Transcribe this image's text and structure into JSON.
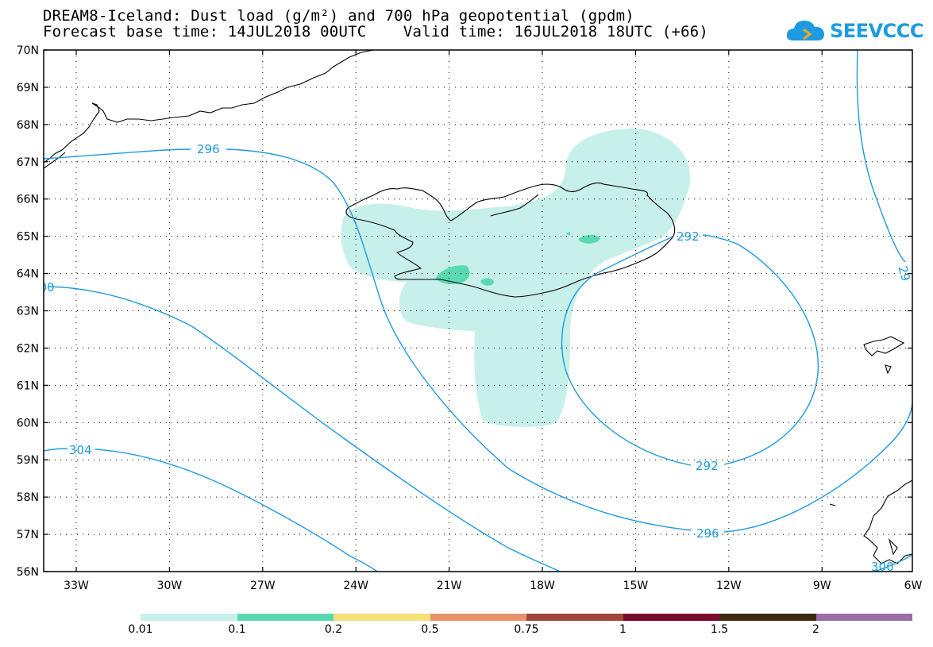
{
  "title": {
    "line1": "DREAM8-Iceland: Dust load (g/m²) and 700 hPa geopotential (gpdm)",
    "line2": "Forecast base time: 14JUL2018 00UTC    Valid time: 16JUL2018 18UTC (+66)"
  },
  "logo": {
    "text": "SEEVCCC",
    "icon": "cloud-icon",
    "color": "#1e9be0"
  },
  "axes": {
    "lat_labels": [
      "70N",
      "69N",
      "68N",
      "67N",
      "66N",
      "65N",
      "64N",
      "63N",
      "62N",
      "61N",
      "60N",
      "59N",
      "58N",
      "57N",
      "56N"
    ],
    "lon_labels": [
      "33W",
      "30W",
      "27W",
      "24W",
      "21W",
      "18W",
      "15W",
      "12W",
      "9W",
      "6W"
    ]
  },
  "contours": {
    "color": "#1e9be0",
    "labels": [
      "296",
      "292",
      "292",
      "296",
      "304",
      "300",
      "300",
      "29"
    ]
  },
  "dust_colors": {
    "low": "#c8f0ea",
    "mid": "#5ad9b0"
  },
  "legend": {
    "colors": [
      "#c8f0ea",
      "#5ad9b0",
      "#f5e27a",
      "#e8926a",
      "#a0463c",
      "#7a0a2a",
      "#3c2a14",
      "#9a6ea4"
    ],
    "labels": [
      "0.01",
      "0.1",
      "0.2",
      "0.5",
      "0.75",
      "1",
      "1.5",
      "2"
    ]
  }
}
